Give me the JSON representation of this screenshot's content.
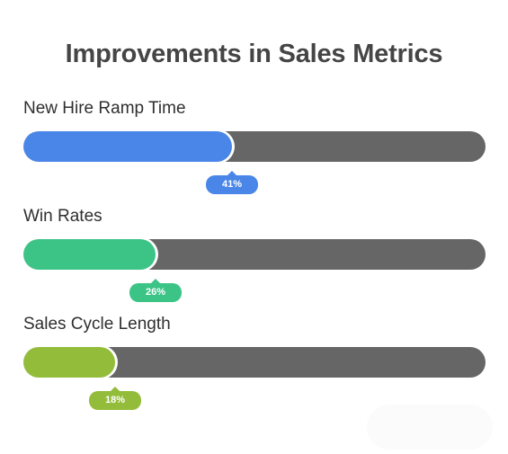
{
  "chart_data": {
    "type": "bar",
    "title": "Improvements in Sales Metrics",
    "orientation": "horizontal",
    "xlim": [
      0,
      100
    ],
    "unit": "%",
    "categories": [
      "New Hire Ramp Time",
      "Win Rates",
      "Sales Cycle Length"
    ],
    "values": [
      41,
      26,
      18
    ],
    "value_labels": [
      "41%",
      "26%",
      "18%"
    ],
    "colors": [
      "#4a86e8",
      "#3cc487",
      "#93bc3a"
    ],
    "track_color": "#666666",
    "legend": "none",
    "grid": false
  }
}
